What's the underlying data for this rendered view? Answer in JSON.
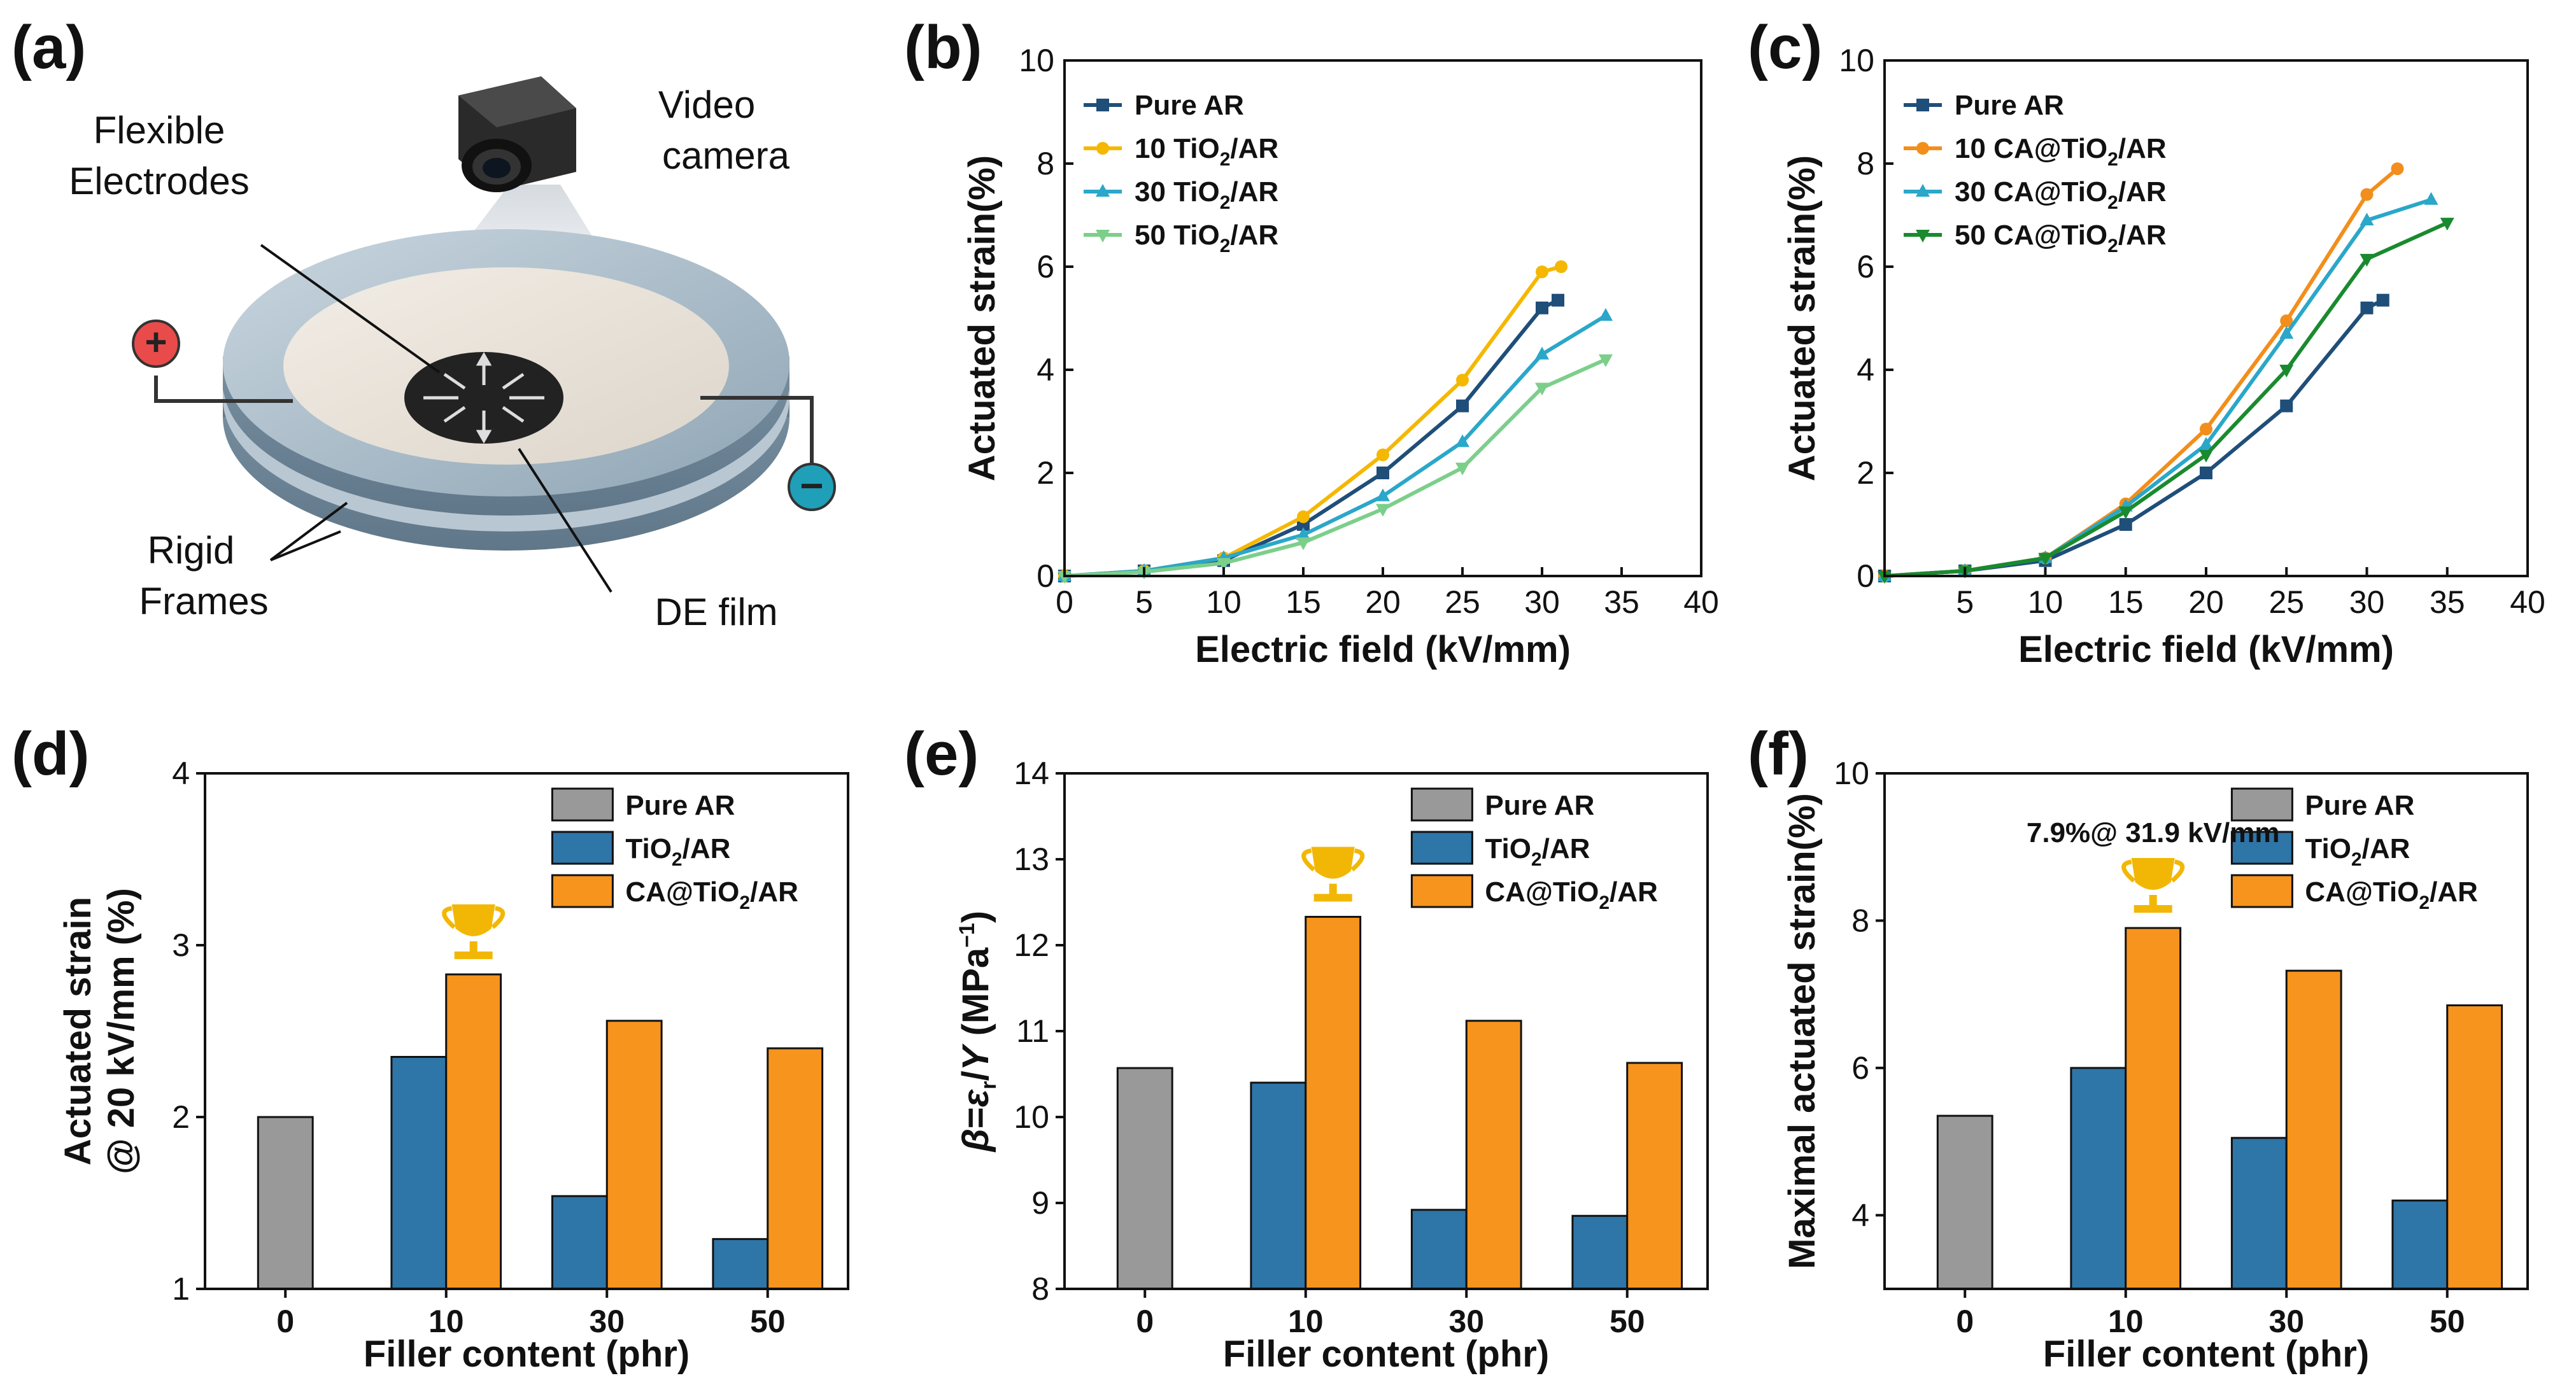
{
  "panels": [
    "(a)",
    "(b)",
    "(c)",
    "(d)",
    "(e)",
    "(f)"
  ],
  "schematic": {
    "labels": {
      "flexible_electrodes": [
        "Flexible",
        "Electrodes"
      ],
      "video_camera": [
        "Video",
        "camera"
      ],
      "rigid_frames": [
        "Rigid",
        "Frames"
      ],
      "de_film": "DE film"
    },
    "plus": "+",
    "minus": "−"
  },
  "chart_data": [
    {
      "id": "b",
      "type": "line",
      "xlabel": "Electric field (kV/mm)",
      "ylabel": "Actuated strain(%)",
      "xlim": [
        0,
        40
      ],
      "ylim": [
        0,
        10
      ],
      "xticks": [
        0,
        5,
        10,
        15,
        20,
        25,
        30,
        35,
        40
      ],
      "yticks": [
        0,
        2,
        4,
        6,
        8,
        10
      ],
      "legend_position": "top-left",
      "series": [
        {
          "name": "Pure AR",
          "sub": "",
          "marker": "square",
          "color": "#1f4e79",
          "x": [
            0,
            5,
            10,
            15,
            20,
            25,
            30,
            31
          ],
          "y": [
            0,
            0.1,
            0.3,
            1.0,
            2.0,
            3.3,
            5.2,
            5.35
          ]
        },
        {
          "name": "10 TiO",
          "sub": "2",
          "suffix": "/AR",
          "marker": "circle",
          "color": "#f5b700",
          "x": [
            0,
            5,
            10,
            15,
            20,
            25,
            30,
            31.2
          ],
          "y": [
            0,
            0.1,
            0.35,
            1.15,
            2.35,
            3.8,
            5.9,
            6.0
          ]
        },
        {
          "name": "30 TiO",
          "sub": "2",
          "suffix": "/AR",
          "marker": "triangle-up",
          "color": "#2aa7c9",
          "x": [
            0,
            5,
            10,
            15,
            20,
            25,
            30,
            34
          ],
          "y": [
            0,
            0.1,
            0.35,
            0.8,
            1.55,
            2.6,
            4.3,
            5.05
          ]
        },
        {
          "name": "50 TiO",
          "sub": "2",
          "suffix": "/AR",
          "marker": "triangle-down",
          "color": "#7ccf8a",
          "x": [
            0,
            5,
            10,
            15,
            20,
            25,
            30,
            34
          ],
          "y": [
            0,
            0.08,
            0.25,
            0.65,
            1.3,
            2.1,
            3.65,
            4.2
          ]
        }
      ]
    },
    {
      "id": "c",
      "type": "line",
      "xlabel": "Electric field (kV/mm)",
      "ylabel": "Actuated strain(%)",
      "xlim": [
        0,
        40
      ],
      "ylim": [
        0,
        10
      ],
      "xticks": [
        5,
        10,
        15,
        20,
        25,
        30,
        35,
        40
      ],
      "yticks": [
        0,
        2,
        4,
        6,
        8,
        10
      ],
      "legend_position": "top-left",
      "series": [
        {
          "name": "Pure AR",
          "sub": "",
          "marker": "square",
          "color": "#1f4e79",
          "x": [
            0,
            5,
            10,
            15,
            20,
            25,
            30,
            31
          ],
          "y": [
            0,
            0.1,
            0.3,
            1.0,
            2.0,
            3.3,
            5.2,
            5.35
          ]
        },
        {
          "name": "10 CA@TiO",
          "sub": "2",
          "suffix": "/AR",
          "marker": "circle",
          "color": "#f28e1c",
          "x": [
            0,
            5,
            10,
            15,
            20,
            25,
            30,
            31.9
          ],
          "y": [
            0,
            0.1,
            0.35,
            1.4,
            2.85,
            4.95,
            7.4,
            7.9
          ]
        },
        {
          "name": "30 CA@TiO",
          "sub": "2",
          "suffix": "/AR",
          "marker": "triangle-up",
          "color": "#2aa7c9",
          "x": [
            0,
            5,
            10,
            15,
            20,
            25,
            30,
            34
          ],
          "y": [
            0,
            0.1,
            0.35,
            1.35,
            2.55,
            4.7,
            6.9,
            7.3
          ]
        },
        {
          "name": "50 CA@TiO",
          "sub": "2",
          "suffix": "/AR",
          "marker": "triangle-down",
          "color": "#1a8a2e",
          "x": [
            0,
            5,
            10,
            15,
            20,
            25,
            30,
            35
          ],
          "y": [
            0,
            0.1,
            0.35,
            1.25,
            2.35,
            4.0,
            6.15,
            6.85
          ]
        }
      ]
    },
    {
      "id": "d",
      "type": "bar",
      "xlabel": "Filler content (phr)",
      "ylabel": [
        "Actuated strain",
        "@ 20 kV/mm (%)"
      ],
      "categories": [
        "0",
        "10",
        "30",
        "50"
      ],
      "ylim": [
        1,
        4
      ],
      "yticks": [
        1,
        2,
        3,
        4
      ],
      "legend_position": "top-right",
      "trophy_category": "10",
      "series": [
        {
          "name": "Pure AR",
          "color": "#999999",
          "values": [
            2.0,
            null,
            null,
            null
          ]
        },
        {
          "name": "TiO",
          "sub": "2",
          "suffix": "/AR",
          "color": "#2e75a8",
          "values": [
            null,
            2.35,
            1.54,
            1.29
          ]
        },
        {
          "name": "CA@TiO",
          "sub": "2",
          "suffix": "/AR",
          "color": "#f7941d",
          "values": [
            null,
            2.83,
            2.56,
            2.4
          ]
        }
      ]
    },
    {
      "id": "e",
      "type": "bar",
      "xlabel": "Filler content (phr)",
      "ylabel": "β = ε_r / Y (MPa⁻¹)",
      "categories": [
        "0",
        "10",
        "30",
        "50"
      ],
      "ylim": [
        8,
        14
      ],
      "yticks": [
        8,
        9,
        10,
        11,
        12,
        13,
        14
      ],
      "legend_position": "top-right",
      "trophy_category": "10",
      "series": [
        {
          "name": "Pure AR",
          "color": "#999999",
          "values": [
            10.57,
            null,
            null,
            null
          ]
        },
        {
          "name": "TiO",
          "sub": "2",
          "suffix": "/AR",
          "color": "#2e75a8",
          "values": [
            null,
            10.4,
            8.92,
            8.85
          ]
        },
        {
          "name": "CA@TiO",
          "sub": "2",
          "suffix": "/AR",
          "color": "#f7941d",
          "values": [
            null,
            12.33,
            11.12,
            10.63
          ]
        }
      ]
    },
    {
      "id": "f",
      "type": "bar",
      "xlabel": "Filler content (phr)",
      "ylabel": "Maximal actuated strain(%)",
      "categories": [
        "0",
        "10",
        "30",
        "50"
      ],
      "ylim": [
        3,
        10
      ],
      "yticks": [
        4,
        6,
        8,
        10
      ],
      "legend_position": "top-right",
      "annotation": "7.9%@ 31.9 kV/mm",
      "trophy_category": "10",
      "series": [
        {
          "name": "Pure AR",
          "color": "#999999",
          "values": [
            5.35,
            null,
            null,
            null
          ]
        },
        {
          "name": "TiO",
          "sub": "2",
          "suffix": "/AR",
          "color": "#2e75a8",
          "values": [
            null,
            6.0,
            5.05,
            4.2
          ]
        },
        {
          "name": "CA@TiO",
          "sub": "2",
          "suffix": "/AR",
          "color": "#f7941d",
          "values": [
            null,
            7.9,
            7.32,
            6.85
          ]
        }
      ]
    }
  ]
}
